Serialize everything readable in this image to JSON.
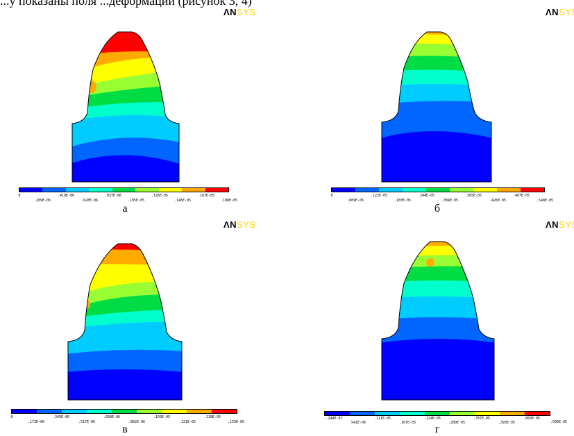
{
  "header_text": "...у показаны поля ...деформаций (рисунок 3, 4)",
  "logo": {
    "an": "ΛN",
    "sys": "SYS"
  },
  "colors": {
    "levels": [
      "#0000ff",
      "#0066ff",
      "#00ccff",
      "#00ffcc",
      "#00dd44",
      "#99ff33",
      "#ffff00",
      "#ffaa00",
      "#ff0000"
    ],
    "outline": "#000000"
  },
  "panels": [
    {
      "label": "а",
      "ticks_top": [
        ".419E-06",
        ".837E-06",
        ".126E-05",
        ".167E-05"
      ],
      "ticks_bottom": [
        "0",
        ".209E-06",
        ".628E-06",
        ".105E-05",
        ".146E-05",
        ".188E-05"
      ]
    },
    {
      "label": "б",
      "ticks_top": [
        ".122E-05",
        ".244E-05",
        ".365E-05",
        ".487E-05"
      ],
      "ticks_bottom": [
        "0",
        ".609E-06",
        ".183E-05",
        ".304E-05",
        ".426E-05",
        ".548E-05"
      ]
    },
    {
      "label": "в",
      "ticks_top": [
        ".345E-06",
        ".690E-06",
        ".103E-05",
        ".138E-05"
      ],
      "ticks_bottom": [
        "0",
        ".172E-06",
        ".517E-06",
        ".862E-06",
        ".121E-05",
        ".155E-05"
      ]
    },
    {
      "label": "г",
      "ticks_top": [
        "-.244E-07",
        ".111E-05",
        ".224E-05",
        ".337E-05",
        ".450E-05"
      ],
      "ticks_bottom": [
        ".541E-06",
        ".167E-05",
        ".280E-05",
        ".393E-05",
        ".506E-05"
      ]
    }
  ]
}
